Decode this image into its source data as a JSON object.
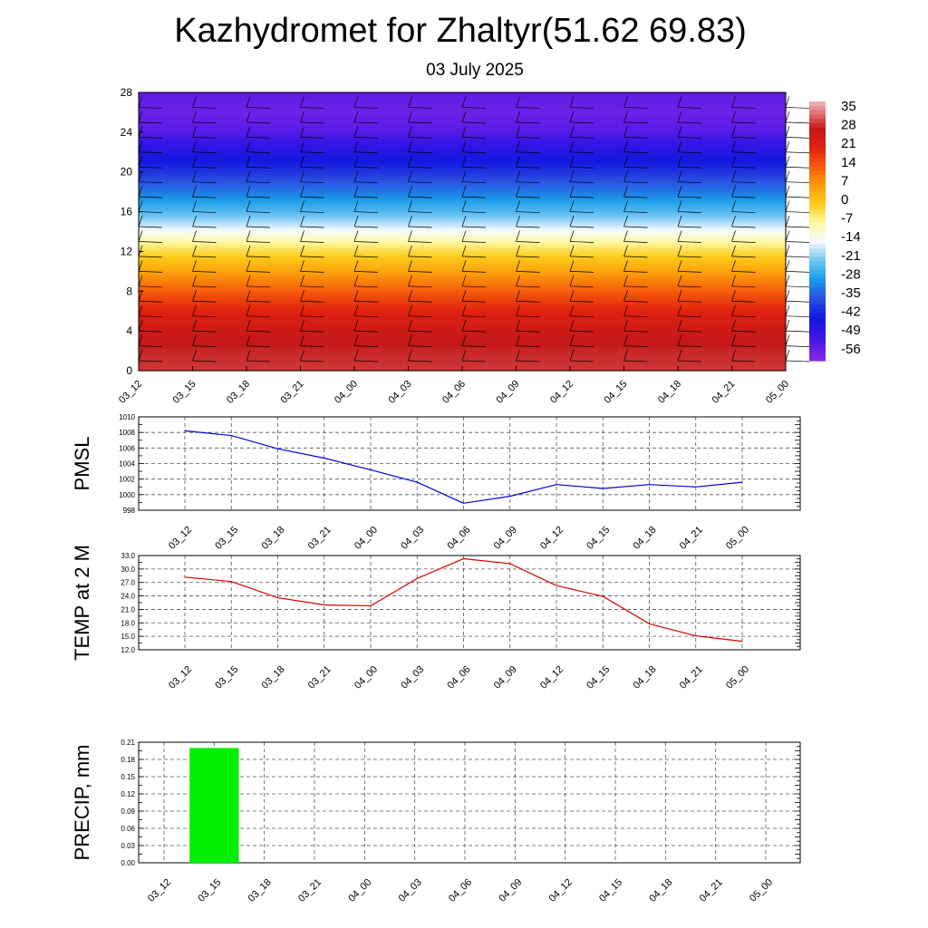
{
  "title": "Kazhydromet for Zhaltyr(51.62 69.83)",
  "subtitle": "03 July 2025",
  "colors": {
    "pmsl_line": "#0000dd",
    "temp_line": "#dd0000",
    "precip_bar": "#00ee00",
    "grid": "#555555"
  },
  "chart_data": [
    {
      "id": "cross_section",
      "type": "heatmap",
      "description_of_fill": "temperature vs height with wind barbs",
      "categories": [
        "03_12",
        "03_15",
        "03_18",
        "03_21",
        "04_00",
        "04_03",
        "04_06",
        "04_09",
        "04_12",
        "04_15",
        "04_18",
        "04_21",
        "05_00"
      ],
      "y_ticks": [
        0,
        4,
        8,
        12,
        16,
        20,
        24,
        28
      ],
      "ylim": [
        0,
        28
      ],
      "colorbar_labels": [
        "35",
        "28",
        "21",
        "14",
        "7",
        "0",
        "-7",
        "-14",
        "-21",
        "-28",
        "-35",
        "-42",
        "-49",
        "-56"
      ],
      "color_stops": [
        {
          "value": 38,
          "color": "#f2b8c0"
        },
        {
          "value": 28,
          "color": "#c41818"
        },
        {
          "value": 21,
          "color": "#e02010"
        },
        {
          "value": 14,
          "color": "#f55a0a"
        },
        {
          "value": 7,
          "color": "#fb9a0c"
        },
        {
          "value": 0,
          "color": "#fccc1a"
        },
        {
          "value": -7,
          "color": "#fff9a8"
        },
        {
          "value": -14,
          "color": "#f4f8ff"
        },
        {
          "value": -21,
          "color": "#6ec6f4"
        },
        {
          "value": -28,
          "color": "#1a9ae8"
        },
        {
          "value": -35,
          "color": "#2a4fe0"
        },
        {
          "value": -42,
          "color": "#1418e0"
        },
        {
          "value": -49,
          "color": "#3a14e6"
        },
        {
          "value": -58,
          "color": "#8a28e6"
        }
      ],
      "profile": [
        {
          "height": 0,
          "value": 30
        },
        {
          "height": 2,
          "value": 29
        },
        {
          "height": 4,
          "value": 26
        },
        {
          "height": 6,
          "value": 21
        },
        {
          "height": 8,
          "value": 14
        },
        {
          "height": 10,
          "value": 6
        },
        {
          "height": 12,
          "value": -2
        },
        {
          "height": 13,
          "value": -7
        },
        {
          "height": 14,
          "value": -13
        },
        {
          "height": 15,
          "value": -18
        },
        {
          "height": 16,
          "value": -23
        },
        {
          "height": 18,
          "value": -31
        },
        {
          "height": 20,
          "value": -38
        },
        {
          "height": 22,
          "value": -45
        },
        {
          "height": 24,
          "value": -52
        },
        {
          "height": 26,
          "value": -55
        },
        {
          "height": 28,
          "value": -53
        }
      ]
    },
    {
      "id": "pmsl",
      "type": "line",
      "ylabel": "PMSL",
      "categories": [
        "03_12",
        "03_15",
        "03_18",
        "03_21",
        "04_00",
        "04_03",
        "04_06",
        "04_09",
        "04_12",
        "04_15",
        "04_18",
        "04_21",
        "05_00"
      ],
      "values": [
        1008.2,
        1007.6,
        1005.9,
        1004.7,
        1003.2,
        1001.6,
        998.9,
        999.8,
        1001.3,
        1000.8,
        1001.3,
        1001.0,
        1001.6
      ],
      "ylim": [
        998,
        1010
      ],
      "y_ticks": [
        "998",
        "1000",
        "1002",
        "1004",
        "1006",
        "1008",
        "1010"
      ]
    },
    {
      "id": "temp2m",
      "type": "line",
      "ylabel": "TEMP at 2 M",
      "categories": [
        "03_12",
        "03_15",
        "03_18",
        "03_21",
        "04_00",
        "04_03",
        "04_06",
        "04_09",
        "04_12",
        "04_15",
        "04_18",
        "04_21",
        "05_00"
      ],
      "values": [
        28.2,
        27.2,
        23.6,
        22.0,
        21.8,
        27.9,
        32.3,
        31.2,
        26.3,
        23.9,
        17.8,
        15.1,
        13.9
      ],
      "ylim": [
        12.0,
        33.0
      ],
      "y_ticks": [
        "12.0",
        "15.0",
        "18.0",
        "21.0",
        "24.0",
        "27.0",
        "30.0",
        "33.0"
      ]
    },
    {
      "id": "precip",
      "type": "bar",
      "ylabel": "PRECIP, mm",
      "categories": [
        "03_12",
        "03_15",
        "03_18",
        "03_21",
        "04_00",
        "04_03",
        "04_06",
        "04_09",
        "04_12",
        "04_15",
        "04_18",
        "04_21",
        "05_00"
      ],
      "values": [
        0,
        0.2,
        0,
        0,
        0,
        0,
        0,
        0,
        0,
        0,
        0,
        0,
        0
      ],
      "ylim": [
        0,
        0.21
      ],
      "y_ticks": [
        "0.00",
        "0.03",
        "0.06",
        "0.09",
        "0.12",
        "0.15",
        "0.18",
        "0.21"
      ]
    }
  ]
}
